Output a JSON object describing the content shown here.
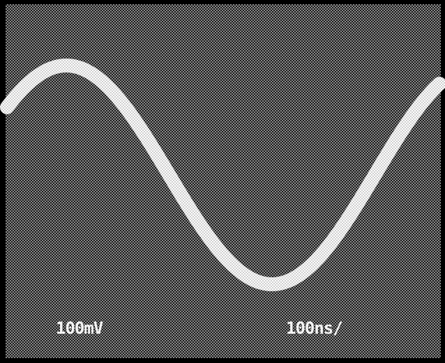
{
  "labels": {
    "voltage_scale": "100mV",
    "time_scale": "100ns/"
  }
}
